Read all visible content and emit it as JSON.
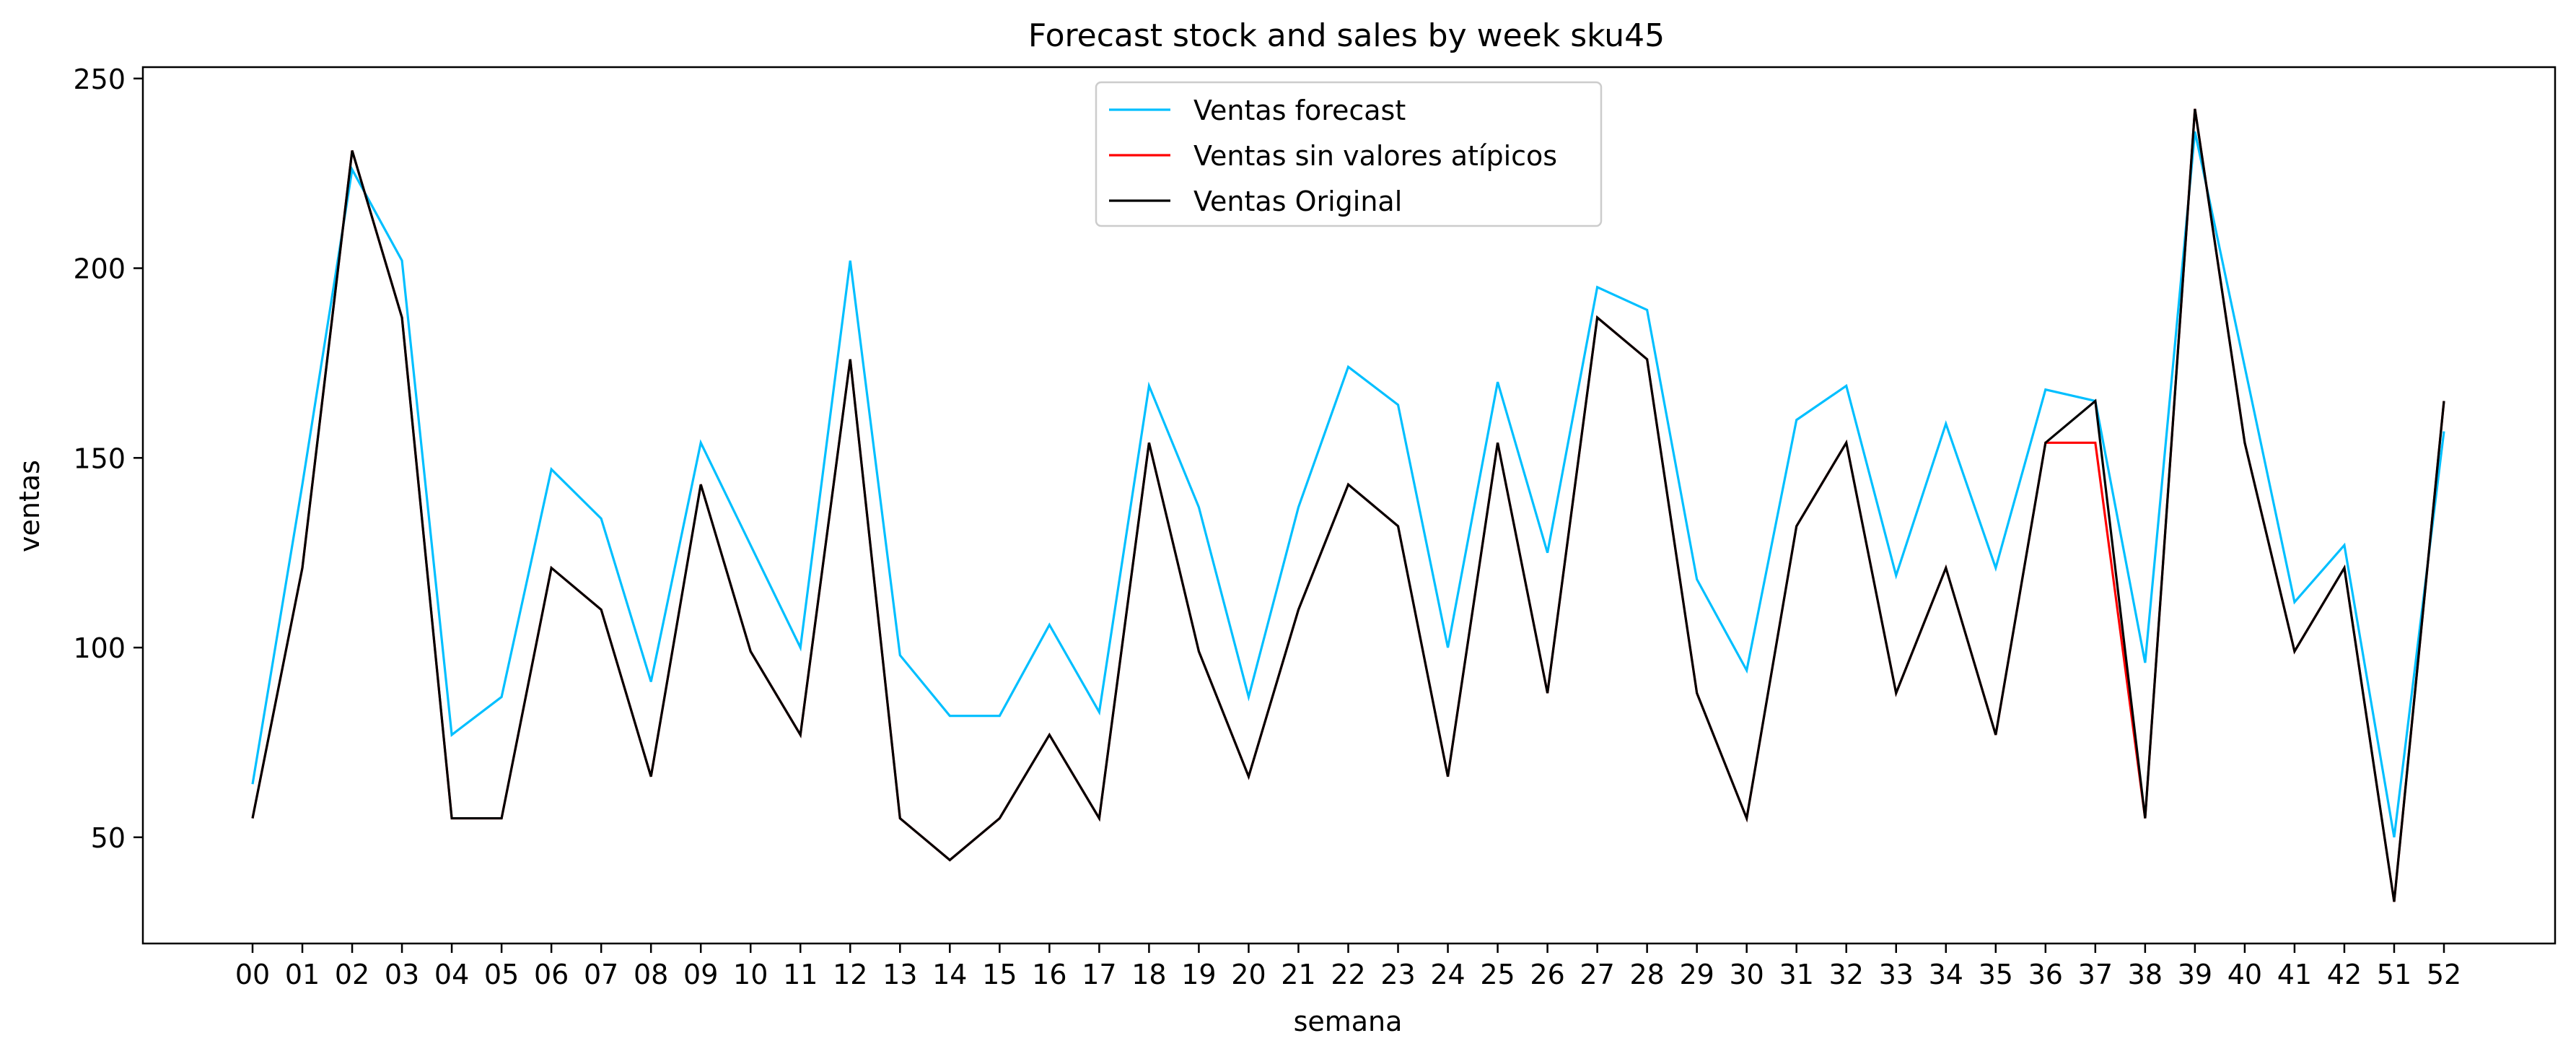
{
  "chart_data": {
    "type": "line",
    "title": "Forecast stock and sales by week sku45",
    "xlabel": "semana",
    "ylabel": "ventas",
    "categories": [
      "00",
      "01",
      "02",
      "03",
      "04",
      "05",
      "06",
      "07",
      "08",
      "09",
      "10",
      "11",
      "12",
      "13",
      "14",
      "15",
      "16",
      "17",
      "18",
      "19",
      "20",
      "21",
      "22",
      "23",
      "24",
      "25",
      "26",
      "27",
      "28",
      "29",
      "30",
      "31",
      "32",
      "33",
      "34",
      "35",
      "36",
      "37",
      "38",
      "39",
      "40",
      "41",
      "42",
      "51",
      "52"
    ],
    "ylim": [
      22,
      253
    ],
    "yticks": [
      50,
      100,
      150,
      200,
      250
    ],
    "grid": false,
    "legend_placement": "upper-center",
    "series": [
      {
        "name": "Ventas forecast",
        "color": "#00bfff",
        "values": [
          64,
          143,
          226,
          202,
          77,
          87,
          147,
          134,
          91,
          154,
          127,
          100,
          202,
          98,
          82,
          82,
          106,
          83,
          169,
          137,
          87,
          137,
          174,
          164,
          100,
          170,
          125,
          195,
          189,
          118,
          94,
          160,
          169,
          119,
          159,
          121,
          168,
          165,
          96,
          236,
          174,
          112,
          127,
          50,
          157
        ]
      },
      {
        "name": "Ventas sin valores atípicos",
        "color": "#ff0000",
        "values": [
          55,
          121,
          231,
          187,
          55,
          55,
          121,
          110,
          66,
          143,
          99,
          77,
          176,
          55,
          44,
          55,
          77,
          55,
          154,
          99,
          66,
          110,
          143,
          132,
          66,
          154,
          88,
          187,
          176,
          88,
          55,
          132,
          154,
          88,
          121,
          77,
          154,
          154,
          55,
          242,
          154,
          99,
          121,
          33,
          165
        ]
      },
      {
        "name": "Ventas Original",
        "color": "#000000",
        "values": [
          55,
          121,
          231,
          187,
          55,
          55,
          121,
          110,
          66,
          143,
          99,
          77,
          176,
          55,
          44,
          55,
          77,
          55,
          154,
          99,
          66,
          110,
          143,
          132,
          66,
          154,
          88,
          187,
          176,
          88,
          55,
          132,
          154,
          88,
          121,
          77,
          154,
          165,
          55,
          242,
          154,
          99,
          121,
          33,
          165
        ]
      }
    ]
  }
}
